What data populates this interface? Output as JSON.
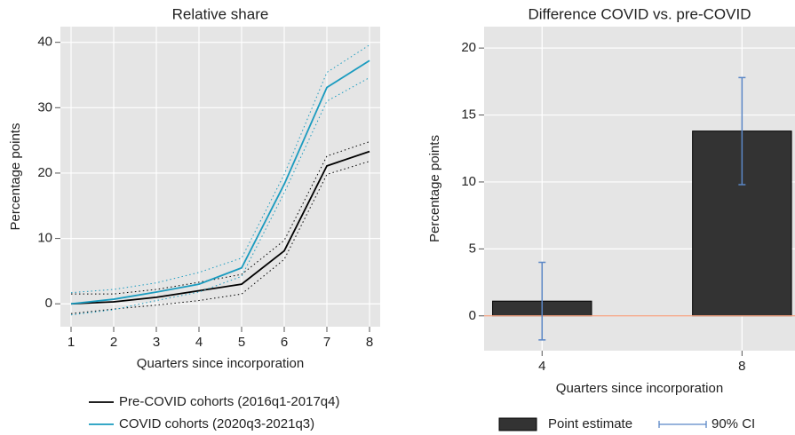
{
  "chart_data": [
    {
      "type": "line",
      "title": "Relative share",
      "xlabel": "Quarters since incorporation",
      "ylabel": "Percentage points",
      "x": [
        1,
        2,
        3,
        4,
        5,
        6,
        7,
        8
      ],
      "xlim": [
        0.75,
        8.25
      ],
      "xticks": [
        1,
        2,
        3,
        4,
        5,
        6,
        7,
        8
      ],
      "ylim": [
        -3.5,
        42.4
      ],
      "yticks": [
        0,
        10,
        20,
        30,
        40
      ],
      "grid": true,
      "series": [
        {
          "name": "Pre-COVID cohorts (2016q1-2017q4)",
          "color": "#000000",
          "values": [
            0,
            0.3,
            1,
            2,
            3,
            8.1,
            21.1,
            23.3
          ],
          "lower": [
            -1.5,
            -0.8,
            -0.2,
            0.5,
            1.5,
            6.8,
            19.8,
            21.8
          ],
          "upper": [
            1.5,
            1.5,
            2.2,
            3.3,
            4.5,
            9.7,
            22.6,
            24.8
          ]
        },
        {
          "name": "COVID cohorts (2020q3-2021q3)",
          "color": "#1a9bbf",
          "values": [
            0,
            0.7,
            1.8,
            3.0,
            5.5,
            18.3,
            33.1,
            37.2
          ],
          "lower": [
            -1.7,
            -0.9,
            0.5,
            1.8,
            4.2,
            17,
            31,
            34.6
          ],
          "upper": [
            1.7,
            2.2,
            3.2,
            4.8,
            7,
            19.8,
            35.4,
            39.6
          ]
        }
      ]
    },
    {
      "type": "bar",
      "title": "Difference COVID vs. pre-COVID",
      "xlabel": "Quarters since incorporation",
      "ylabel": "Percentage points",
      "x": [
        4,
        8
      ],
      "xlim": [
        2.84,
        9.06
      ],
      "xticks": [
        4,
        8
      ],
      "ylim": [
        -2.6,
        21.6
      ],
      "yticks": [
        0,
        5,
        10,
        15,
        20
      ],
      "grid": true,
      "zeroline": "#f4a07f",
      "series": [
        {
          "name": "Point estimate",
          "color": "#333333",
          "values": [
            1.1,
            13.8
          ]
        }
      ],
      "ci": {
        "name": "90% CI",
        "color": "#5b87c6",
        "lower": [
          -1.8,
          9.8
        ],
        "upper": [
          4.0,
          17.8
        ]
      }
    }
  ]
}
